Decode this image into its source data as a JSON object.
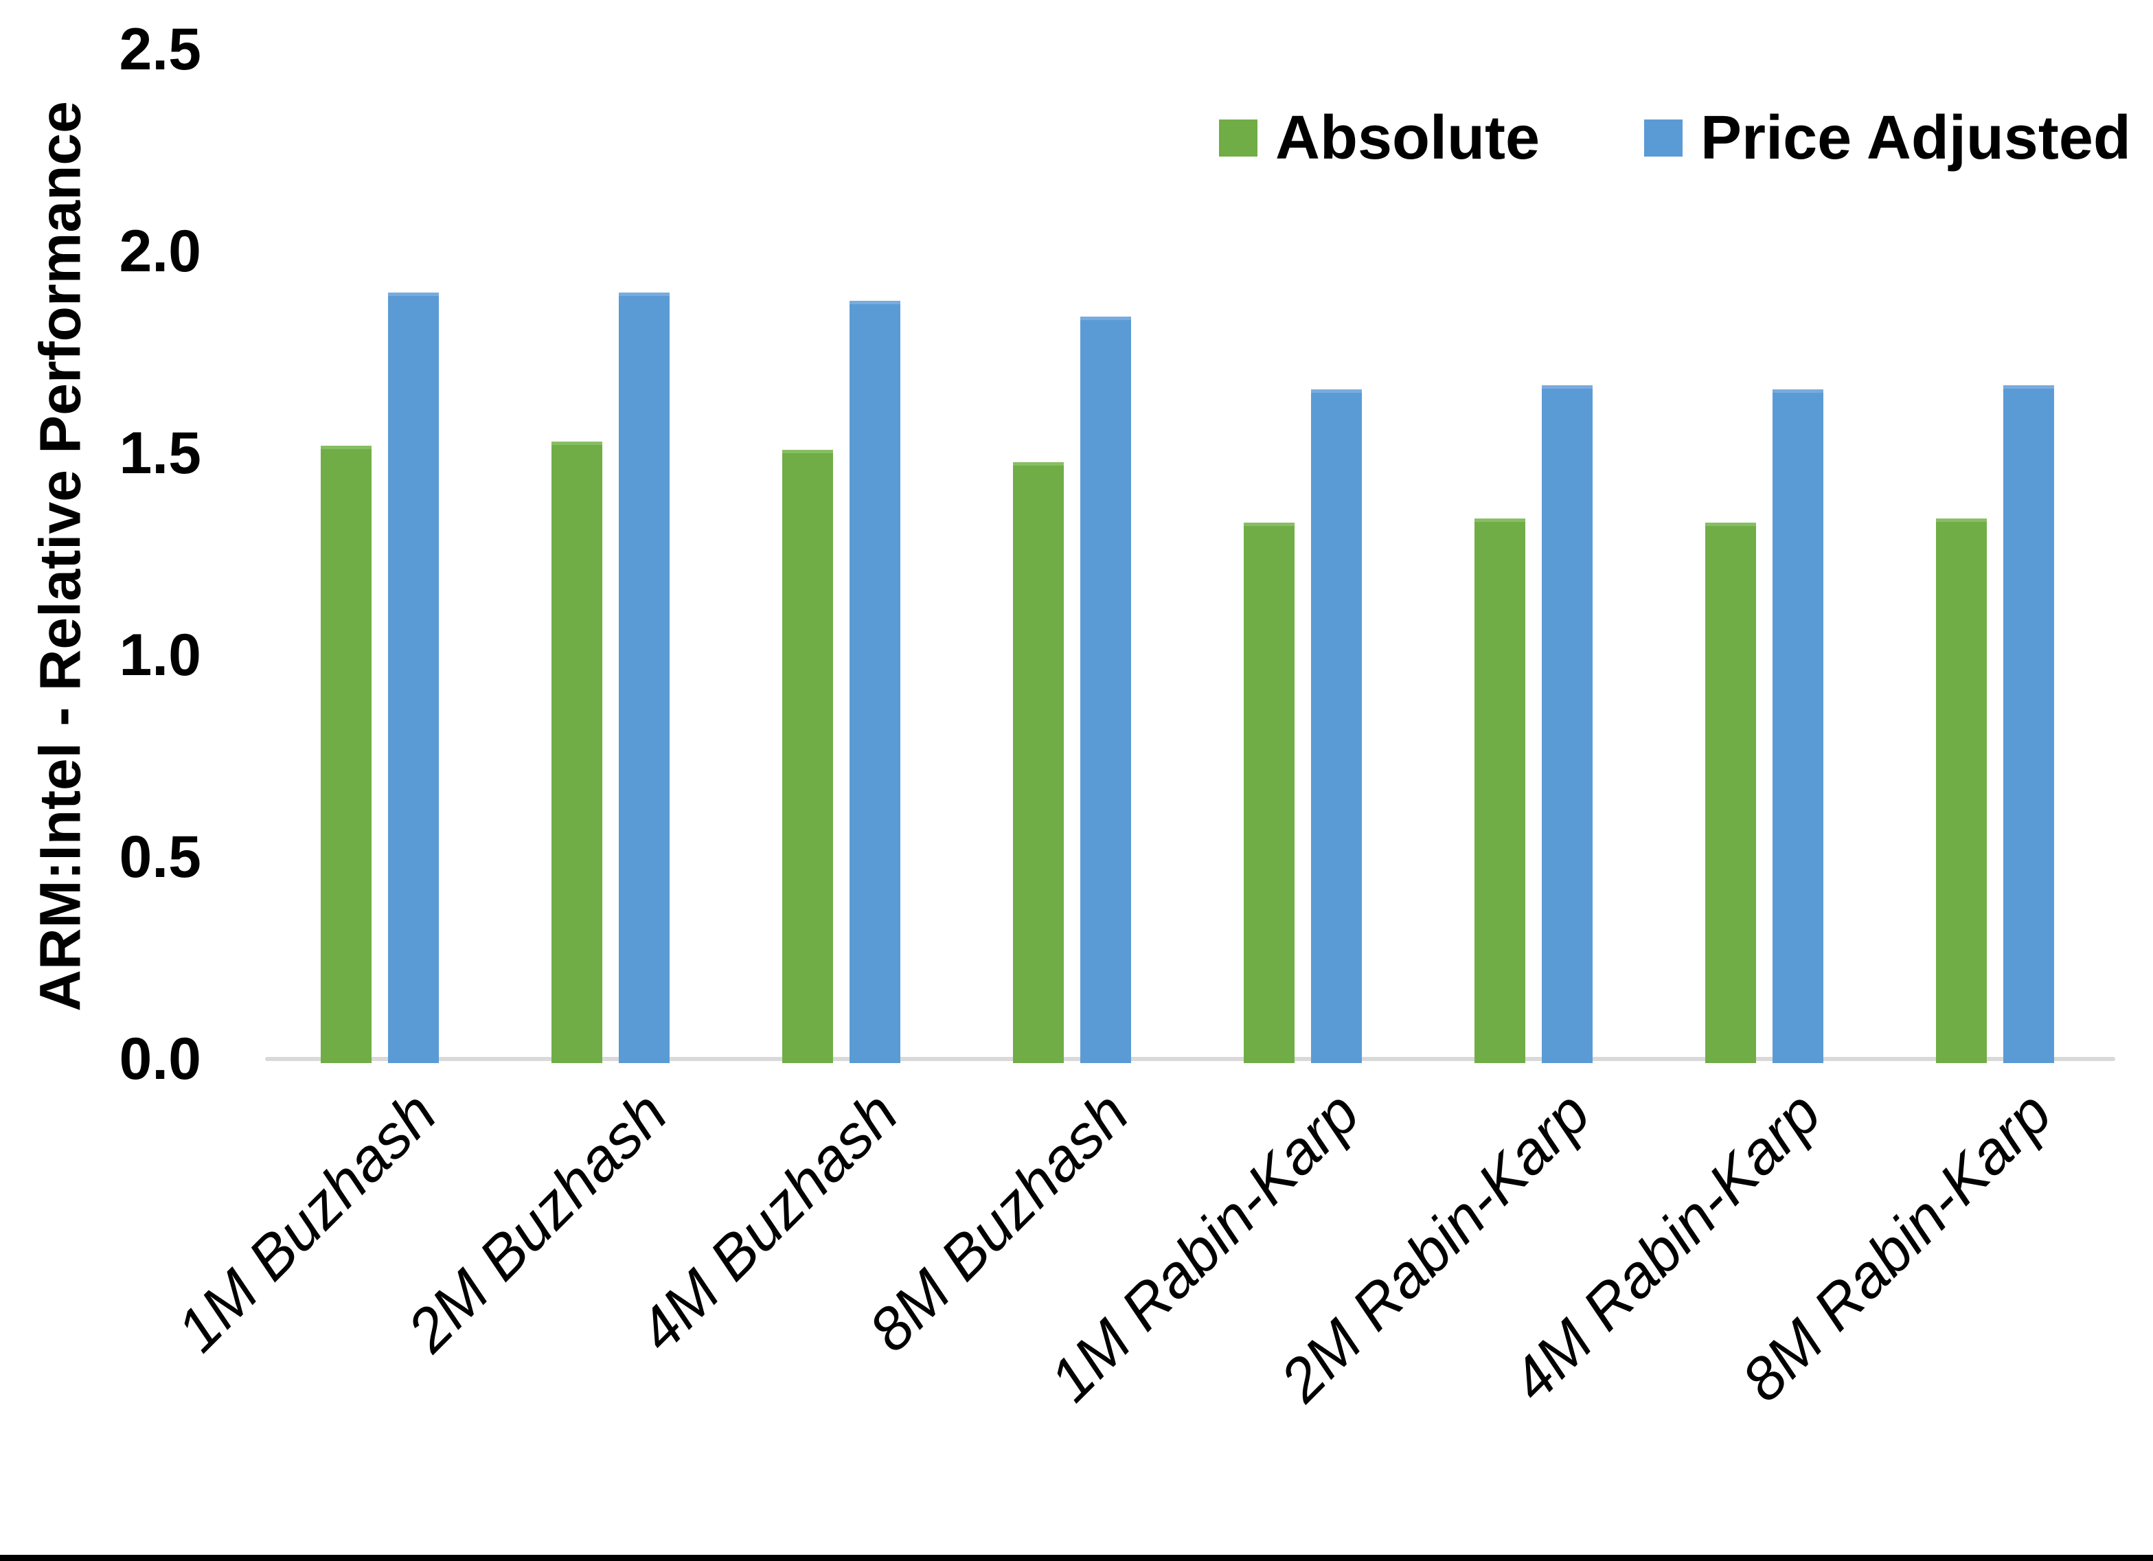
{
  "chart_data": {
    "type": "bar",
    "title": "",
    "ylabel": "ARM:Intel - Relative Performance",
    "xlabel": "",
    "categories": [
      "1M Buzhash",
      "2M Buzhash",
      "4M Buzhash",
      "8M Buzhash",
      "1M Rabin-Karp",
      "2M Rabin-Karp",
      "4M Rabin-Karp",
      "8M Rabin-Karp"
    ],
    "series": [
      {
        "name": "Absolute",
        "color": "#70AD47",
        "edge_color": "#87BE62",
        "values": [
          1.52,
          1.53,
          1.51,
          1.48,
          1.33,
          1.34,
          1.33,
          1.34
        ]
      },
      {
        "name": "Price Adjusted",
        "color": "#5B9BD5",
        "edge_color": "#78ABDF",
        "values": [
          1.9,
          1.9,
          1.88,
          1.84,
          1.66,
          1.67,
          1.66,
          1.67
        ]
      }
    ],
    "ylim": [
      0.0,
      2.5
    ],
    "ytick_labels": [
      "0.0",
      "0.5",
      "1.0",
      "1.5",
      "2.0",
      "2.5"
    ],
    "grid": false,
    "legend_position": "top-right",
    "axis_line_color": "#D9D9D9",
    "text_color": "#000000"
  }
}
